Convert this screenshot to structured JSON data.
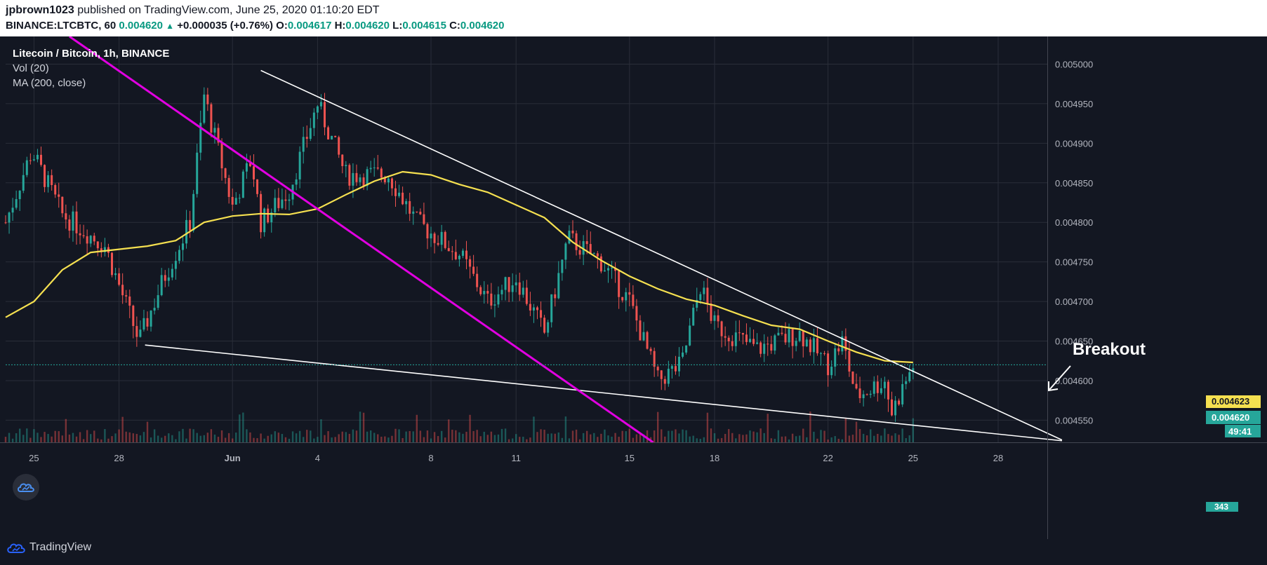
{
  "header": {
    "author": "jpbrown1023",
    "published_text": "published on TradingView.com, June 25, 2020 01:10:20 EDT",
    "symbol": "BINANCE:LTCBTC, 60",
    "last": "0.004620",
    "change": "+0.000035 (+0.76%)",
    "o_label": "O:",
    "o": "0.004617",
    "h_label": "H:",
    "h": "0.004620",
    "l_label": "L:",
    "l": "0.004615",
    "c_label": "C:",
    "c": "0.004620"
  },
  "legend": {
    "title": "Litecoin / Bitcoin, 1h, BINANCE",
    "vol": "Vol (20)",
    "ma": "MA (200, close)"
  },
  "annotation": {
    "breakout": "Breakout"
  },
  "price_labels": {
    "ma": "0.004623",
    "last": "0.004620",
    "countdown": "49:41",
    "volume": "343"
  },
  "footer": {
    "brand": "TradingView"
  },
  "colors": {
    "background": "#131722",
    "up": "#26a69a",
    "down": "#ef5350",
    "ma": "#f5e050",
    "trendline": "#ffffff",
    "channel": "#e100e1",
    "last_price": "#26a69a"
  },
  "chart_data": {
    "type": "candlestick",
    "title": "Litecoin / Bitcoin, 1h, BINANCE",
    "x_tick_labels": [
      "25",
      "28",
      "Jun",
      "4",
      "8",
      "11",
      "15",
      "18",
      "22",
      "25",
      "28"
    ],
    "y_tick_labels": [
      "0.005000",
      "0.004950",
      "0.004900",
      "0.004850",
      "0.004800",
      "0.004750",
      "0.004700",
      "0.004650",
      "0.004600",
      "0.004550"
    ],
    "ylim": [
      0.004522,
      0.005035
    ],
    "close_path": [
      {
        "x": "2020-05-24 00:00",
        "y": 0.0048
      },
      {
        "x": "2020-05-24 22:00",
        "y": 0.00489
      },
      {
        "x": "2020-05-26 00:00",
        "y": 0.00481
      },
      {
        "x": "2020-05-27 12:00",
        "y": 0.00477
      },
      {
        "x": "2020-05-28 17:00",
        "y": 0.00465
      },
      {
        "x": "2020-05-29 14:00",
        "y": 0.00473
      },
      {
        "x": "2020-05-30 12:00",
        "y": 0.0048
      },
      {
        "x": "2020-05-31 00:00",
        "y": 0.00496
      },
      {
        "x": "2020-06-01 00:00",
        "y": 0.00482
      },
      {
        "x": "2020-06-01 16:00",
        "y": 0.00488
      },
      {
        "x": "2020-06-02 00:00",
        "y": 0.0048
      },
      {
        "x": "2020-06-03 00:00",
        "y": 0.00484
      },
      {
        "x": "2020-06-04 00:00",
        "y": 0.00495
      },
      {
        "x": "2020-06-05 00:00",
        "y": 0.00486
      },
      {
        "x": "2020-06-06 12:00",
        "y": 0.00486
      },
      {
        "x": "2020-06-07 12:00",
        "y": 0.0048
      },
      {
        "x": "2020-06-09 00:00",
        "y": 0.00476
      },
      {
        "x": "2020-06-10 00:00",
        "y": 0.0047
      },
      {
        "x": "2020-06-11 00:00",
        "y": 0.00473
      },
      {
        "x": "2020-06-12 00:00",
        "y": 0.00466
      },
      {
        "x": "2020-06-12 20:00",
        "y": 0.00478
      },
      {
        "x": "2020-06-14 00:00",
        "y": 0.00475
      },
      {
        "x": "2020-06-15 00:00",
        "y": 0.0047
      },
      {
        "x": "2020-06-16 00:00",
        "y": 0.0046
      },
      {
        "x": "2020-06-16 20:00",
        "y": 0.00462
      },
      {
        "x": "2020-06-17 12:00",
        "y": 0.00472
      },
      {
        "x": "2020-06-18 00:00",
        "y": 0.00467
      },
      {
        "x": "2020-06-19 12:00",
        "y": 0.00464
      },
      {
        "x": "2020-06-21 00:00",
        "y": 0.00466
      },
      {
        "x": "2020-06-22 00:00",
        "y": 0.00462
      },
      {
        "x": "2020-06-22 12:00",
        "y": 0.00465
      },
      {
        "x": "2020-06-23 00:00",
        "y": 0.00458
      },
      {
        "x": "2020-06-24 00:00",
        "y": 0.0046
      },
      {
        "x": "2020-06-24 06:00",
        "y": 0.00456
      },
      {
        "x": "2020-06-25 00:00",
        "y": 0.00462
      }
    ],
    "ma_200": [
      {
        "x": "2020-05-24 00:00",
        "y": 0.00468
      },
      {
        "x": "2020-05-25 00:00",
        "y": 0.0047
      },
      {
        "x": "2020-05-26 00:00",
        "y": 0.00474
      },
      {
        "x": "2020-05-27 00:00",
        "y": 0.004762
      },
      {
        "x": "2020-05-29 00:00",
        "y": 0.00477
      },
      {
        "x": "2020-05-30 00:00",
        "y": 0.004777
      },
      {
        "x": "2020-05-31 00:00",
        "y": 0.0048
      },
      {
        "x": "2020-06-01 00:00",
        "y": 0.004808
      },
      {
        "x": "2020-06-02 00:00",
        "y": 0.004811
      },
      {
        "x": "2020-06-03 00:00",
        "y": 0.00481
      },
      {
        "x": "2020-06-04 00:00",
        "y": 0.004817
      },
      {
        "x": "2020-06-05 00:00",
        "y": 0.004835
      },
      {
        "x": "2020-06-06 00:00",
        "y": 0.004852
      },
      {
        "x": "2020-06-07 00:00",
        "y": 0.004864
      },
      {
        "x": "2020-06-08 00:00",
        "y": 0.00486
      },
      {
        "x": "2020-06-09 00:00",
        "y": 0.004848
      },
      {
        "x": "2020-06-10 00:00",
        "y": 0.004838
      },
      {
        "x": "2020-06-11 00:00",
        "y": 0.004822
      },
      {
        "x": "2020-06-12 00:00",
        "y": 0.004806
      },
      {
        "x": "2020-06-13 00:00",
        "y": 0.004775
      },
      {
        "x": "2020-06-14 00:00",
        "y": 0.004752
      },
      {
        "x": "2020-06-15 00:00",
        "y": 0.004732
      },
      {
        "x": "2020-06-16 00:00",
        "y": 0.004716
      },
      {
        "x": "2020-06-17 00:00",
        "y": 0.004703
      },
      {
        "x": "2020-06-18 00:00",
        "y": 0.004695
      },
      {
        "x": "2020-06-19 00:00",
        "y": 0.004682
      },
      {
        "x": "2020-06-20 00:00",
        "y": 0.00467
      },
      {
        "x": "2020-06-21 00:00",
        "y": 0.004665
      },
      {
        "x": "2020-06-22 00:00",
        "y": 0.00465
      },
      {
        "x": "2020-06-23 00:00",
        "y": 0.004636
      },
      {
        "x": "2020-06-24 00:00",
        "y": 0.004625
      },
      {
        "x": "2020-06-25 00:00",
        "y": 0.004623
      }
    ],
    "drawings": [
      {
        "name": "upper-trendline",
        "from": {
          "x": "2020-06-02 00:00",
          "y": 0.004992
        },
        "to": {
          "x": "2020-06-30 06:00",
          "y": 0.004525
        }
      },
      {
        "name": "lower-trendline",
        "from": {
          "x": "2020-05-28 22:00",
          "y": 0.004645
        },
        "to": {
          "x": "2020-06-30 06:00",
          "y": 0.004524
        }
      },
      {
        "name": "magenta-line",
        "from": {
          "x": "2020-05-26 06:00",
          "y": 0.005035
        },
        "to": {
          "x": "2020-06-15 20:00",
          "y": 0.004522
        }
      }
    ],
    "last_price": 0.00462,
    "ma_last": 0.004623
  }
}
